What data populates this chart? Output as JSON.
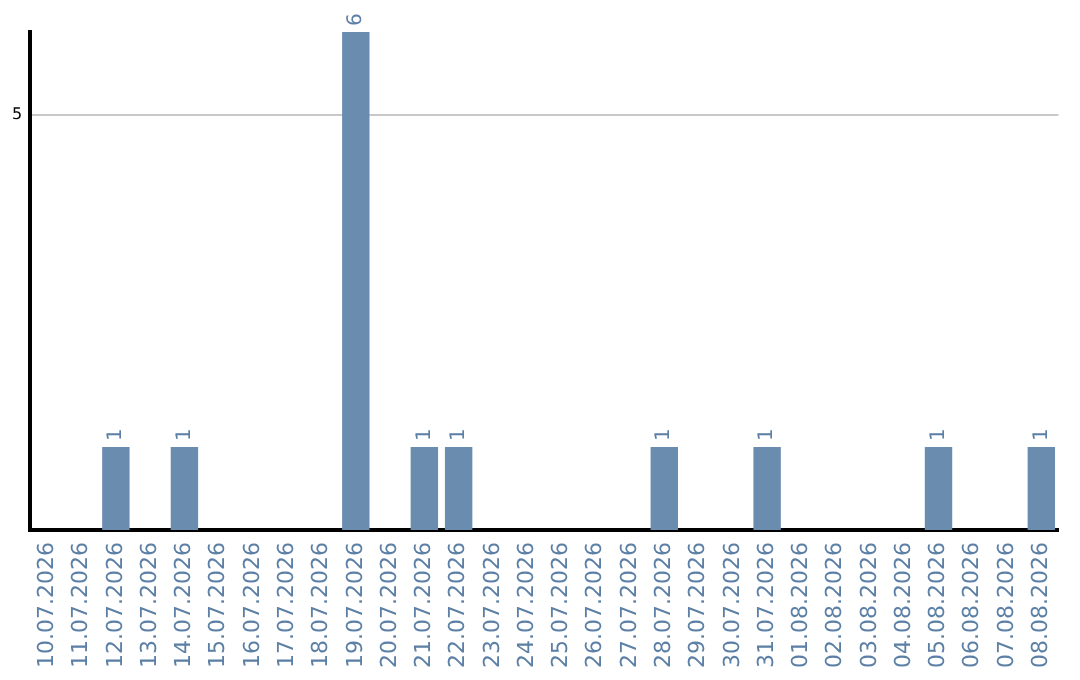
{
  "chart_data": {
    "type": "bar",
    "categories": [
      "10.07.2026",
      "11.07.2026",
      "12.07.2026",
      "13.07.2026",
      "14.07.2026",
      "15.07.2026",
      "16.07.2026",
      "17.07.2026",
      "18.07.2026",
      "19.07.2026",
      "20.07.2026",
      "21.07.2026",
      "22.07.2026",
      "23.07.2026",
      "24.07.2026",
      "25.07.2026",
      "26.07.2026",
      "27.07.2026",
      "28.07.2026",
      "29.07.2026",
      "30.07.2026",
      "31.07.2026",
      "01.08.2026",
      "02.08.2026",
      "03.08.2026",
      "04.08.2026",
      "05.08.2026",
      "06.08.2026",
      "07.08.2026",
      "08.08.2026"
    ],
    "values": [
      0,
      0,
      1,
      0,
      1,
      0,
      0,
      0,
      0,
      6,
      0,
      1,
      1,
      0,
      0,
      0,
      0,
      0,
      1,
      0,
      0,
      1,
      0,
      0,
      0,
      0,
      1,
      0,
      0,
      1
    ],
    "value_labels": [
      null,
      null,
      "1",
      null,
      "1",
      null,
      null,
      null,
      null,
      "6",
      null,
      "1",
      "1",
      null,
      null,
      null,
      null,
      null,
      "1",
      null,
      null,
      "1",
      null,
      null,
      null,
      null,
      "1",
      null,
      null,
      "1"
    ],
    "color": "#6a8caf",
    "ylim": [
      0,
      6
    ],
    "yticks": [
      5
    ],
    "grid": "y",
    "legend": false
  }
}
